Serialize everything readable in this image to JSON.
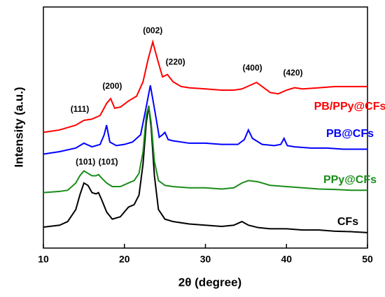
{
  "chart_data": {
    "type": "line",
    "xlabel": "2θ (degree)",
    "ylabel": "Intensity (a.u.)",
    "xlim": [
      10,
      50
    ],
    "xticks": [
      10,
      20,
      30,
      40,
      50
    ],
    "ylim": [
      0,
      100
    ],
    "series": [
      {
        "name": "CFs",
        "color": "#000000",
        "x": [
          10,
          12,
          13,
          14,
          14.5,
          15,
          15.5,
          16,
          16.5,
          16.8,
          17.2,
          17.8,
          18.5,
          19.5,
          20.5,
          21.2,
          21.8,
          22.3,
          22.7,
          23,
          23.3,
          23.7,
          24.2,
          25,
          26,
          28,
          30,
          32,
          33.5,
          34.5,
          35.3,
          36.5,
          38,
          40,
          42,
          44,
          46,
          48,
          50
        ],
        "values": [
          8.7,
          9.5,
          11,
          16,
          22,
          27,
          26,
          23,
          22.5,
          23,
          20,
          15,
          12,
          13,
          17,
          18,
          22,
          35,
          52,
          59,
          50,
          30,
          16,
          12,
          11,
          10,
          9.5,
          9,
          9.5,
          11,
          9.5,
          8.5,
          8,
          8,
          7.5,
          7.5,
          7,
          6.8,
          6.4
        ]
      },
      {
        "name": "PPy@CFs",
        "color": "#1a8c1a",
        "x": [
          10,
          12,
          13,
          14,
          14.5,
          15,
          15.5,
          16,
          16.5,
          16.8,
          17.2,
          17.8,
          18.5,
          19.5,
          20.5,
          21.2,
          21.8,
          22.3,
          22.7,
          23,
          23.3,
          23.7,
          24.2,
          25,
          26,
          28,
          30,
          32,
          33.5,
          34.5,
          35.3,
          36.5,
          38,
          40,
          42,
          44,
          46,
          48,
          50
        ],
        "values": [
          23,
          23.5,
          24,
          27,
          30,
          32,
          31,
          30,
          30,
          30.5,
          29,
          27,
          25.5,
          25.5,
          27,
          28,
          31,
          40,
          55,
          59,
          52,
          36,
          28,
          26,
          25.5,
          25,
          25,
          24.5,
          25,
          27,
          28,
          27.5,
          26,
          25.5,
          25,
          24.5,
          24.3,
          24,
          24
        ]
      },
      {
        "name": "PB@CFs",
        "color": "#0000ff",
        "x": [
          10,
          12,
          14,
          15,
          16,
          17,
          17.5,
          17.8,
          18.2,
          19,
          20,
          21,
          22,
          22.6,
          23.2,
          23.8,
          24.3,
          24.7,
          25,
          25.4,
          26,
          28,
          30,
          32,
          34,
          34.8,
          35.3,
          35.8,
          37,
          38.5,
          39.3,
          39.7,
          40.1,
          41,
          43,
          45,
          47,
          50
        ],
        "values": [
          39,
          40,
          41.5,
          43.5,
          42,
          43,
          47,
          51,
          44,
          42.5,
          43,
          44,
          47,
          57,
          67.5,
          56,
          46,
          47,
          48,
          45,
          44.5,
          43.5,
          43.5,
          43,
          43,
          45,
          49,
          45.5,
          43,
          42.5,
          43,
          45.5,
          42.5,
          42,
          41.5,
          41.5,
          41,
          41
        ]
      },
      {
        "name": "PB/PPy@CFs",
        "color": "#ff0000",
        "x": [
          10,
          12,
          14,
          15,
          16,
          17,
          17.8,
          18.3,
          18.8,
          19.5,
          20.5,
          21.5,
          22.3,
          22.9,
          23.5,
          24.1,
          24.7,
          25.3,
          26,
          27,
          28,
          30,
          32,
          33.5,
          34.5,
          35.5,
          36.3,
          37,
          38,
          39,
          40,
          41,
          42,
          44,
          46,
          48,
          50
        ],
        "values": [
          48,
          49,
          51,
          53,
          53.5,
          55,
          60,
          62,
          58,
          58.5,
          61,
          63,
          69,
          78,
          85.5,
          78,
          71,
          72,
          69,
          67,
          66.5,
          66,
          65.5,
          65.5,
          66,
          67.5,
          68.7,
          67,
          64.5,
          64,
          65.5,
          66.5,
          66,
          66.5,
          67,
          67,
          67
        ]
      }
    ],
    "annotations": [
      {
        "text": "(002)",
        "x": 23.5,
        "y": 90
      },
      {
        "text": "(220)",
        "x": 26.3,
        "y": 77
      },
      {
        "text": "(200)",
        "x": 18.5,
        "y": 67
      },
      {
        "text": "(111)",
        "x": 14.5,
        "y": 57.5
      },
      {
        "text": "(400)",
        "x": 35.8,
        "y": 74.5
      },
      {
        "text": "(420)",
        "x": 40.8,
        "y": 72.5
      },
      {
        "text": "(101)",
        "x": 15.2,
        "y": 35.5
      },
      {
        "text": "(101̄)",
        "x": 18.0,
        "y": 35.5
      }
    ]
  }
}
